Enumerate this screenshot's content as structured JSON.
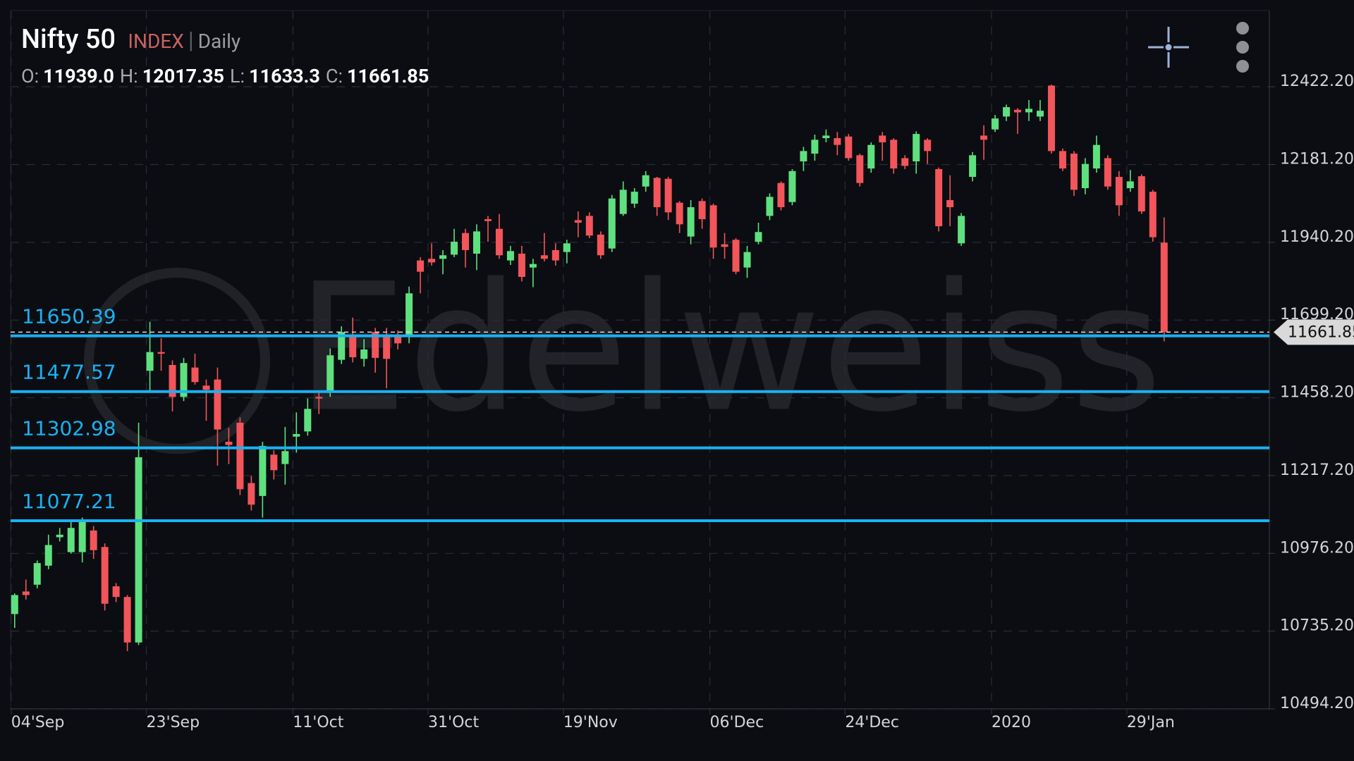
{
  "chart_data": {
    "type": "candlestick",
    "title": "Nifty 50",
    "instrument_type": "INDEX",
    "interval": "Daily",
    "ohlc_header": [
      {
        "label": "O:",
        "value": "11939.0"
      },
      {
        "label": "H:",
        "value": "12017.35"
      },
      {
        "label": "L:",
        "value": "11633.3"
      },
      {
        "label": "C:",
        "value": "11661.85"
      }
    ],
    "watermark": "Edelweiss",
    "up_color": "#5fe07f",
    "down_color": "#f2555a",
    "grid": true,
    "categories": [
      "04'Sep",
      null,
      null,
      null,
      null,
      null,
      null,
      null,
      null,
      null,
      null,
      null,
      "23'Sep",
      null,
      null,
      null,
      null,
      null,
      null,
      null,
      null,
      null,
      null,
      null,
      null,
      "11'Oct",
      null,
      null,
      null,
      null,
      null,
      null,
      null,
      null,
      null,
      null,
      null,
      "31'Oct",
      null,
      null,
      null,
      null,
      null,
      null,
      null,
      null,
      null,
      null,
      null,
      "19'Nov",
      null,
      null,
      null,
      null,
      null,
      null,
      null,
      null,
      null,
      null,
      null,
      null,
      "06'Dec",
      null,
      null,
      null,
      null,
      null,
      null,
      null,
      null,
      null,
      null,
      null,
      "24'Dec",
      null,
      null,
      null,
      null,
      null,
      null,
      null,
      null,
      null,
      null,
      null,
      null,
      "2020",
      null,
      null,
      null,
      null,
      null,
      null,
      null,
      null,
      null,
      null,
      null,
      "29'Jan",
      null,
      null,
      null
    ],
    "open": [
      10788,
      10858,
      10879,
      10938,
      11026,
      10980,
      10980,
      11047,
      10996,
      10874,
      10841,
      10700,
      11542,
      11600,
      11560,
      11461,
      11552,
      11496,
      11515,
      11322,
      11381,
      11194,
      11154,
      11282,
      11253,
      11338,
      11354,
      11461,
      11475,
      11576,
      11654,
      11579,
      11662,
      11648,
      11654,
      11648,
      11884,
      11889,
      11889,
      11902,
      11969,
      11905,
      12012,
      11982,
      11884,
      11905,
      11862,
      11900,
      11916,
      11910,
      12009,
      12022,
      11964,
      11921,
      12028,
      12060,
      12113,
      12140,
      12137,
      12063,
      11958,
      12068,
      12055,
      11934,
      11948,
      11862,
      11942,
      12022,
      12124,
      12065,
      12191,
      12215,
      12263,
      12263,
      12268,
      12210,
      12169,
      12271,
      12258,
      12201,
      12191,
      12258,
      12167,
      12071,
      11937,
      12143,
      12271,
      12290,
      12330,
      12351,
      12343,
      12330,
      12426,
      12223,
      12215,
      12108,
      12169,
      12201,
      12143,
      12108,
      12145,
      12097,
      11939
    ],
    "high": [
      10852,
      10895,
      10954,
      11034,
      11055,
      11074,
      11087,
      11061,
      11007,
      10884,
      10847,
      11381,
      11694,
      11643,
      11574,
      11582,
      11595,
      11515,
      11552,
      11365,
      11397,
      11216,
      11322,
      11296,
      11368,
      11413,
      11456,
      11475,
      11611,
      11680,
      11707,
      11640,
      11675,
      11675,
      11667,
      11803,
      11894,
      11937,
      11916,
      11982,
      11982,
      11996,
      12022,
      12028,
      11929,
      11929,
      11889,
      11969,
      11937,
      11948,
      12036,
      12033,
      11974,
      12087,
      12129,
      12108,
      12161,
      12143,
      12143,
      12068,
      12071,
      12076,
      12060,
      11969,
      11953,
      11929,
      12001,
      12092,
      12129,
      12167,
      12236,
      12274,
      12290,
      12282,
      12276,
      12215,
      12250,
      12282,
      12263,
      12210,
      12284,
      12263,
      12172,
      12148,
      12031,
      12220,
      12303,
      12335,
      12367,
      12356,
      12381,
      12381,
      12429,
      12231,
      12223,
      12201,
      12271,
      12210,
      12161,
      12164,
      12151,
      12103,
      12017.35
    ],
    "low": [
      10745,
      10833,
      10868,
      10927,
      11013,
      10975,
      10948,
      10959,
      10799,
      10825,
      10673,
      10692,
      11475,
      11542,
      11416,
      11448,
      11499,
      11387,
      11248,
      11253,
      11157,
      11109,
      11087,
      11205,
      11189,
      11288,
      11341,
      11408,
      11461,
      11563,
      11568,
      11555,
      11536,
      11488,
      11608,
      11627,
      11782,
      11868,
      11841,
      11894,
      11862,
      11854,
      11942,
      11889,
      11870,
      11819,
      11801,
      11881,
      11868,
      11875,
      11956,
      11953,
      11889,
      11910,
      12022,
      12047,
      12097,
      12022,
      12009,
      11969,
      11934,
      11982,
      11889,
      11889,
      11841,
      11830,
      11934,
      12009,
      12039,
      12055,
      12161,
      12193,
      12250,
      12210,
      12193,
      12113,
      12156,
      12193,
      12153,
      12167,
      12153,
      12183,
      11974,
      11990,
      11929,
      12129,
      12196,
      12282,
      12316,
      12276,
      12316,
      12316,
      12215,
      12161,
      12084,
      12089,
      12156,
      12103,
      12022,
      12097,
      12028,
      11942,
      11633.3
    ],
    "close": [
      10847,
      10847,
      10946,
      11002,
      11034,
      11055,
      11074,
      10986,
      10820,
      10841,
      10700,
      11274,
      11600,
      11595,
      11461,
      11566,
      11507,
      11483,
      11360,
      11312,
      11175,
      11127,
      11309,
      11234,
      11293,
      11346,
      11424,
      11456,
      11590,
      11662,
      11584,
      11608,
      11582,
      11579,
      11627,
      11782,
      11849,
      11878,
      11900,
      11942,
      11916,
      11974,
      12006,
      11900,
      11913,
      11833,
      11873,
      11889,
      11884,
      11937,
      12001,
      11961,
      11900,
      12076,
      12103,
      12097,
      12148,
      12049,
      12033,
      11996,
      12049,
      12012,
      11924,
      11926,
      11849,
      11910,
      11972,
      12081,
      12049,
      12161,
      12223,
      12258,
      12271,
      12242,
      12201,
      12124,
      12242,
      12250,
      12169,
      12177,
      12276,
      12223,
      11990,
      12049,
      12022,
      12210,
      12258,
      12324,
      12359,
      12343,
      12354,
      12348,
      12223,
      12169,
      12103,
      12183,
      12242,
      12113,
      12055,
      12129,
      12036,
      11956,
      11661.85
    ],
    "levels": {
      "color": "#1ab2f2",
      "values": [
        11650.39,
        11477.57,
        11302.98,
        11077.21
      ]
    },
    "ylim": [
      10494.2,
      12658.4
    ],
    "yticks": [
      {
        "value": 12422.2,
        "label": "12422.20"
      },
      {
        "value": 12181.2,
        "label": "12181.20"
      },
      {
        "value": 11940.2,
        "label": "11940.20"
      },
      {
        "value": 11699.2,
        "label": "11699.20"
      },
      {
        "value": 11458.2,
        "label": "11458.20"
      },
      {
        "value": 11217.2,
        "label": "11217.20"
      },
      {
        "value": 10976.2,
        "label": "10976.20"
      },
      {
        "value": 10735.2,
        "label": "10735.20"
      },
      {
        "value": 10494.2,
        "label": "10494.20"
      }
    ]
  }
}
